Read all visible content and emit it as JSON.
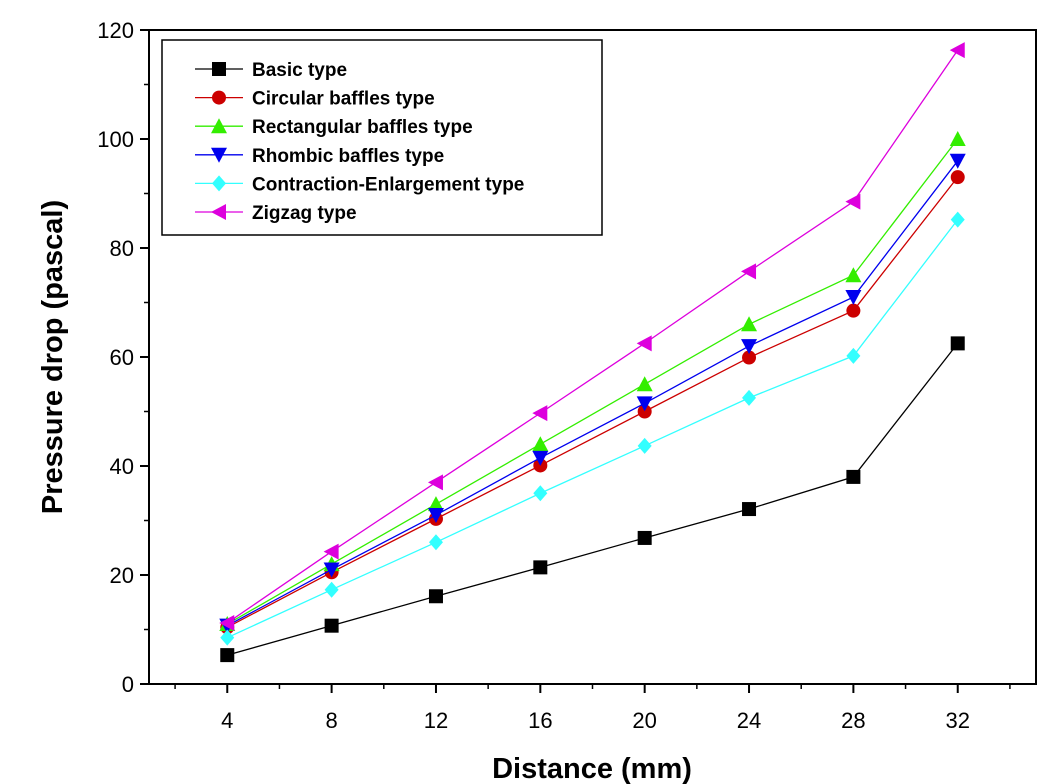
{
  "chart_data": {
    "type": "line",
    "xlabel": "Distance (mm)",
    "ylabel": "Pressure drop (pascal)",
    "xlim": [
      1,
      35
    ],
    "ylim": [
      0,
      120
    ],
    "x": [
      4,
      8,
      12,
      16,
      20,
      24,
      28,
      32
    ],
    "x_ticks": [
      "4",
      "8",
      "12",
      "16",
      "20",
      "24",
      "28",
      "32"
    ],
    "y_ticks": [
      "0",
      "20",
      "40",
      "60",
      "80",
      "100",
      "120"
    ],
    "legend_position": "top-left",
    "grid": false,
    "series": [
      {
        "name": "Basic type",
        "color": "#000000",
        "marker": "square",
        "values": [
          5.3,
          10.7,
          16.1,
          21.4,
          26.8,
          32.1,
          38.0,
          62.5
        ]
      },
      {
        "name": "Circular baffles type",
        "color": "#cc0000",
        "marker": "circle",
        "values": [
          10.4,
          20.5,
          30.3,
          40.1,
          50.0,
          59.9,
          68.5,
          93.0
        ]
      },
      {
        "name": "Rectangular baffles type",
        "color": "#33ee00",
        "marker": "triangle-up",
        "values": [
          11.0,
          22.0,
          33.0,
          44.0,
          55.0,
          66.0,
          75.0,
          100.0
        ]
      },
      {
        "name": "Rhombic baffles type",
        "color": "#0000ee",
        "marker": "triangle-down",
        "values": [
          10.7,
          21.0,
          31.0,
          41.5,
          51.5,
          62.0,
          71.0,
          96.0
        ]
      },
      {
        "name": "Contraction-Enlargement type",
        "color": "#33ffff",
        "marker": "diamond",
        "values": [
          8.5,
          17.3,
          26.0,
          35.0,
          43.7,
          52.5,
          60.2,
          85.2
        ]
      },
      {
        "name": "Zigzag type",
        "color": "#dd00dd",
        "marker": "triangle-left",
        "values": [
          11.2,
          24.3,
          37.0,
          49.7,
          62.5,
          75.7,
          88.5,
          116.3
        ]
      }
    ]
  }
}
